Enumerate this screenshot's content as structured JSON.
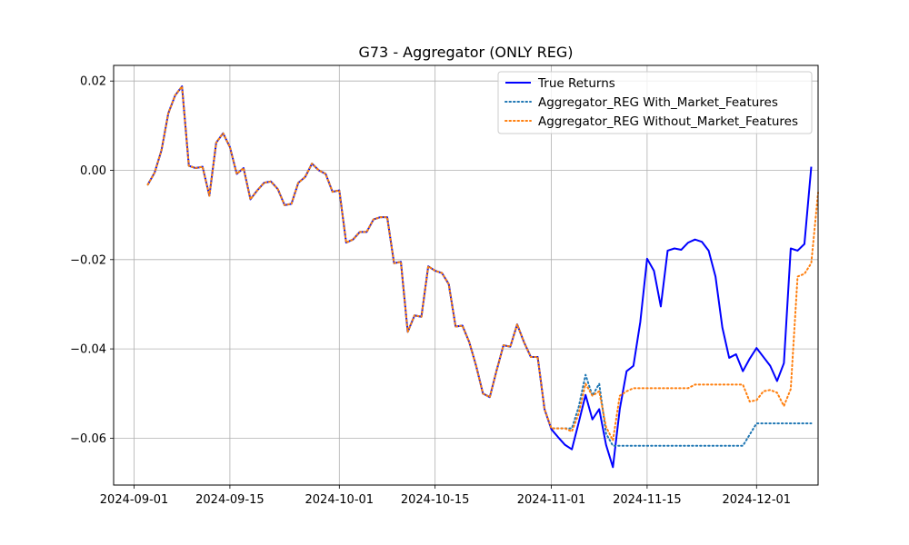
{
  "chart_data": {
    "type": "line",
    "title": "G73 - Aggregator (ONLY REG)",
    "xlabel": "",
    "ylabel": "",
    "x_start": "2024-09-03",
    "x_ticks": [
      "2024-09-01",
      "2024-09-15",
      "2024-10-01",
      "2024-10-15",
      "2024-11-01",
      "2024-11-15",
      "2024-12-01"
    ],
    "y_ticks": [
      0.02,
      0.0,
      -0.02,
      -0.04,
      -0.06
    ],
    "y_tick_labels": [
      "0.02",
      "0.00",
      "−0.02",
      "−0.04",
      "−0.06"
    ],
    "xlim": [
      "2024-08-29",
      "2024-12-10"
    ],
    "ylim": [
      -0.0705,
      0.0235
    ],
    "grid": true,
    "legend_position": "upper right",
    "series": [
      {
        "name": "True Returns",
        "color": "#0000ff",
        "style": "solid",
        "values": [
          -0.0032,
          -0.0005,
          0.0045,
          0.0128,
          0.0168,
          0.0188,
          0.001,
          0.0005,
          0.0008,
          -0.0057,
          0.0062,
          0.0083,
          0.0052,
          -0.0008,
          0.0005,
          -0.0065,
          -0.0045,
          -0.0028,
          -0.0025,
          -0.0042,
          -0.0078,
          -0.0075,
          -0.0028,
          -0.0015,
          0.0015,
          0.0,
          -0.0008,
          -0.0048,
          -0.0045,
          -0.0162,
          -0.0155,
          -0.0138,
          -0.0138,
          -0.011,
          -0.0105,
          -0.0105,
          -0.0208,
          -0.0205,
          -0.0362,
          -0.0325,
          -0.0328,
          -0.0215,
          -0.0225,
          -0.023,
          -0.0255,
          -0.035,
          -0.0348,
          -0.0385,
          -0.0438,
          -0.05,
          -0.0508,
          -0.0448,
          -0.0392,
          -0.0395,
          -0.0345,
          -0.0385,
          -0.0418,
          -0.0418,
          -0.0535,
          -0.058,
          -0.0598,
          -0.0615,
          -0.0625,
          -0.0565,
          -0.0503,
          -0.0558,
          -0.0535,
          -0.0615,
          -0.0665,
          -0.0535,
          -0.045,
          -0.0438,
          -0.034,
          -0.0198,
          -0.0225,
          -0.0305,
          -0.018,
          -0.0175,
          -0.0178,
          -0.0162,
          -0.0155,
          -0.016,
          -0.018,
          -0.0238,
          -0.0352,
          -0.042,
          -0.0412,
          -0.045,
          -0.0422,
          -0.0398,
          -0.0418,
          -0.0438,
          -0.0472,
          -0.0432,
          -0.0175,
          -0.018,
          -0.0165,
          0.0008
        ]
      },
      {
        "name": "Aggregator_REG With_Market_Features",
        "color": "#1f77b4",
        "style": "dotted",
        "values": [
          -0.0032,
          -0.0005,
          0.0045,
          0.0128,
          0.0168,
          0.0188,
          0.001,
          0.0005,
          0.0008,
          -0.0057,
          0.0062,
          0.0083,
          0.0052,
          -0.0008,
          0.0005,
          -0.0065,
          -0.0045,
          -0.0028,
          -0.0025,
          -0.0042,
          -0.0078,
          -0.0075,
          -0.0028,
          -0.0015,
          0.0015,
          0.0,
          -0.0008,
          -0.0048,
          -0.0045,
          -0.0162,
          -0.0155,
          -0.0138,
          -0.0138,
          -0.011,
          -0.0105,
          -0.0105,
          -0.0208,
          -0.0205,
          -0.0362,
          -0.0325,
          -0.0328,
          -0.0215,
          -0.0225,
          -0.023,
          -0.0255,
          -0.035,
          -0.0348,
          -0.0385,
          -0.0438,
          -0.05,
          -0.0508,
          -0.0448,
          -0.0392,
          -0.0395,
          -0.0345,
          -0.0385,
          -0.0418,
          -0.0418,
          -0.0535,
          -0.0578,
          -0.0578,
          -0.0578,
          -0.0578,
          -0.053,
          -0.0458,
          -0.0505,
          -0.0478,
          -0.059,
          -0.0617,
          -0.0617,
          -0.0617,
          -0.0617,
          -0.0617,
          -0.0617,
          -0.0617,
          -0.0617,
          -0.0617,
          -0.0617,
          -0.0617,
          -0.0617,
          -0.0617,
          -0.0617,
          -0.0617,
          -0.0617,
          -0.0617,
          -0.0617,
          -0.0617,
          -0.0617,
          -0.0592,
          -0.0567,
          -0.0567,
          -0.0567,
          -0.0567,
          -0.0567,
          -0.0567,
          -0.0567,
          -0.0567,
          -0.0567
        ]
      },
      {
        "name": "Aggregator_REG Without_Market_Features",
        "color": "#ff7f0e",
        "style": "dotted",
        "values": [
          -0.0032,
          -0.0005,
          0.0045,
          0.0128,
          0.0168,
          0.0188,
          0.001,
          0.0005,
          0.0008,
          -0.0057,
          0.0062,
          0.0083,
          0.0052,
          -0.0008,
          0.0005,
          -0.0065,
          -0.0045,
          -0.0028,
          -0.0025,
          -0.0042,
          -0.0078,
          -0.0075,
          -0.0028,
          -0.0015,
          0.0015,
          0.0,
          -0.0008,
          -0.0048,
          -0.0045,
          -0.0162,
          -0.0155,
          -0.0138,
          -0.0138,
          -0.011,
          -0.0105,
          -0.0105,
          -0.0208,
          -0.0205,
          -0.0362,
          -0.0325,
          -0.0328,
          -0.0215,
          -0.0225,
          -0.023,
          -0.0255,
          -0.035,
          -0.0348,
          -0.0385,
          -0.0438,
          -0.05,
          -0.0508,
          -0.0448,
          -0.0392,
          -0.0395,
          -0.0345,
          -0.0385,
          -0.0418,
          -0.0418,
          -0.0535,
          -0.0578,
          -0.0578,
          -0.0578,
          -0.0585,
          -0.0545,
          -0.0478,
          -0.0505,
          -0.0495,
          -0.0575,
          -0.0605,
          -0.0505,
          -0.0495,
          -0.0488,
          -0.0488,
          -0.0488,
          -0.0488,
          -0.0488,
          -0.0488,
          -0.0488,
          -0.0488,
          -0.0488,
          -0.048,
          -0.048,
          -0.048,
          -0.048,
          -0.048,
          -0.048,
          -0.048,
          -0.048,
          -0.0518,
          -0.0515,
          -0.0495,
          -0.0492,
          -0.0498,
          -0.0528,
          -0.049,
          -0.0238,
          -0.0232,
          -0.0208,
          -0.005
        ]
      }
    ]
  }
}
